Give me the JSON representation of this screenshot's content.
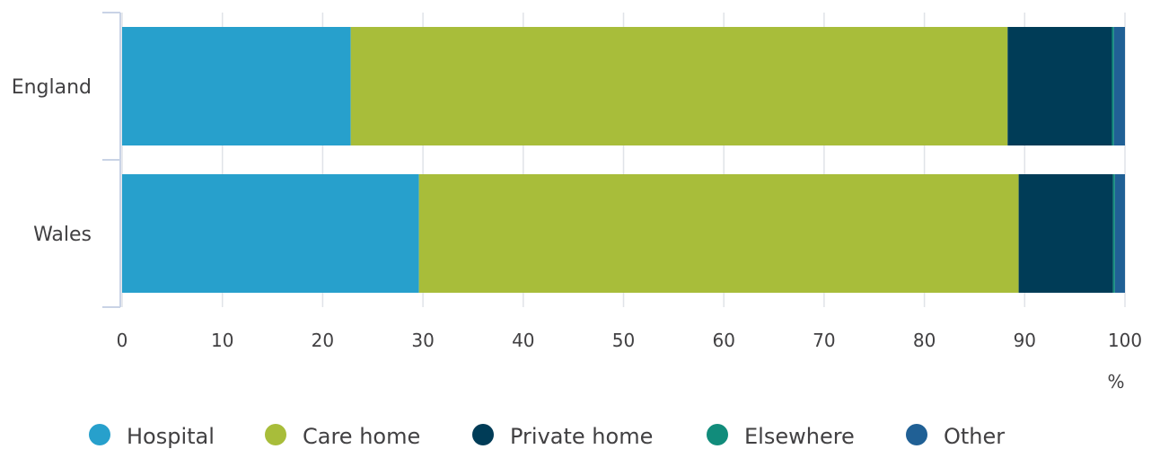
{
  "chart_data": {
    "type": "bar",
    "orientation": "horizontal",
    "stacked": true,
    "categories": [
      "England",
      "Wales"
    ],
    "series": [
      {
        "name": "Hospital",
        "color": "#27a0cc",
        "values": [
          22.8,
          29.6
        ]
      },
      {
        "name": "Care home",
        "color": "#a8bd3a",
        "values": [
          65.5,
          59.8
        ]
      },
      {
        "name": "Private home",
        "color": "#003c57",
        "values": [
          10.4,
          9.4
        ]
      },
      {
        "name": "Elsewhere",
        "color": "#118c7b",
        "values": [
          0.2,
          0.2
        ]
      },
      {
        "name": "Other",
        "color": "#206095",
        "values": [
          1.1,
          1.0
        ]
      }
    ],
    "xlim": [
      0,
      100
    ],
    "xticks": [
      "0",
      "10",
      "20",
      "30",
      "40",
      "50",
      "60",
      "70",
      "80",
      "90",
      "100"
    ],
    "xunit": "%",
    "grid": true,
    "legend_position": "bottom"
  }
}
